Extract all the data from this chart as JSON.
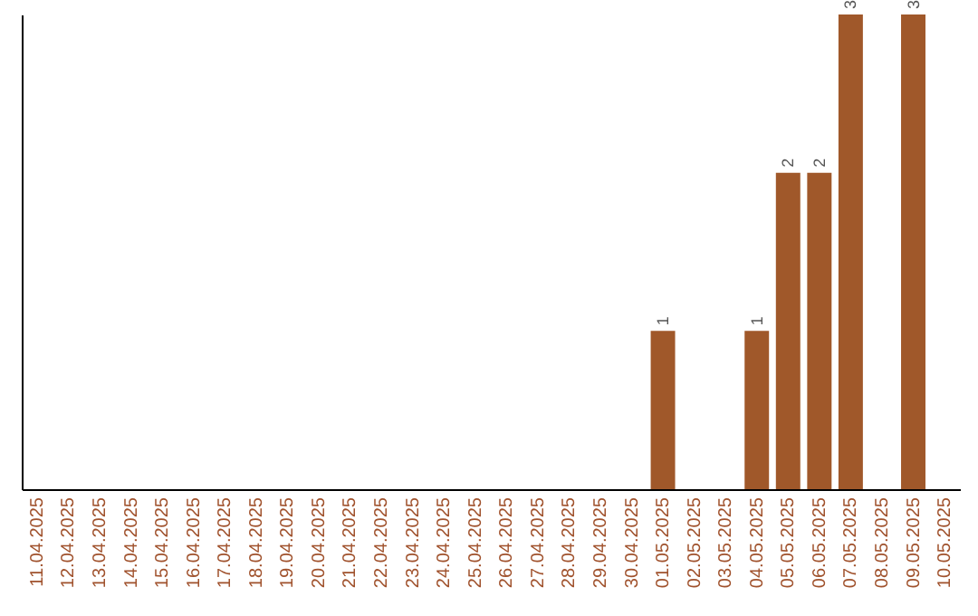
{
  "chart_data": {
    "type": "bar",
    "categories": [
      "11.04.2025",
      "12.04.2025",
      "13.04.2025",
      "14.04.2025",
      "15.04.2025",
      "16.04.2025",
      "17.04.2025",
      "18.04.2025",
      "19.04.2025",
      "20.04.2025",
      "21.04.2025",
      "22.04.2025",
      "23.04.2025",
      "24.04.2025",
      "25.04.2025",
      "26.04.2025",
      "27.04.2025",
      "28.04.2025",
      "29.04.2025",
      "30.04.2025",
      "01.05.2025",
      "02.05.2025",
      "03.05.2025",
      "04.05.2025",
      "05.05.2025",
      "06.05.2025",
      "07.05.2025",
      "08.05.2025",
      "09.05.2025",
      "10.05.2025"
    ],
    "values": [
      null,
      null,
      null,
      null,
      null,
      null,
      null,
      null,
      null,
      null,
      null,
      null,
      null,
      null,
      null,
      null,
      null,
      null,
      null,
      null,
      1,
      null,
      null,
      1,
      2,
      2,
      3,
      null,
      3,
      null
    ],
    "data_labels": true,
    "color": "#a0582a",
    "tick_labels": "x"
  }
}
